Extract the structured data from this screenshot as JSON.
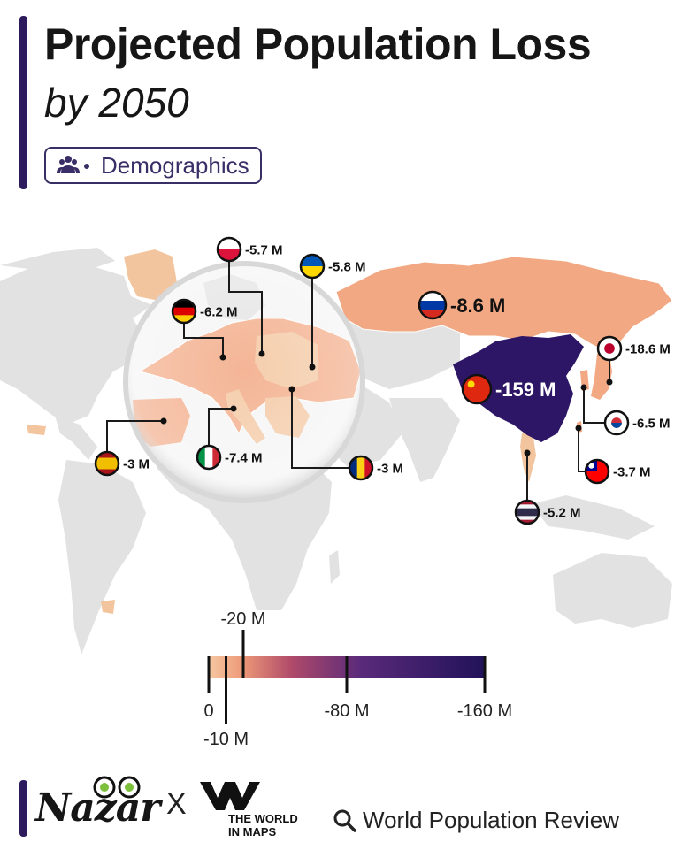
{
  "header": {
    "title": "Projected Population Loss",
    "subtitle": "by 2050",
    "tag": "Demographics",
    "tag_icon": "people-icon"
  },
  "countries": [
    {
      "code": "CN",
      "label": "-159 M",
      "value": -159
    },
    {
      "code": "JP",
      "label": "-18.6 M",
      "value": -18.6
    },
    {
      "code": "RU",
      "label": "-8.6 M",
      "value": -8.6
    },
    {
      "code": "IT",
      "label": "-7.4 M",
      "value": -7.4
    },
    {
      "code": "KR",
      "label": "-6.5 M",
      "value": -6.5
    },
    {
      "code": "DE",
      "label": "-6.2 M",
      "value": -6.2
    },
    {
      "code": "UA",
      "label": "-5.8 M",
      "value": -5.8
    },
    {
      "code": "PL",
      "label": "-5.7 M",
      "value": -5.7
    },
    {
      "code": "TH",
      "label": "-5.2 M",
      "value": -5.2
    },
    {
      "code": "TW",
      "label": "-3.7 M",
      "value": -3.7
    },
    {
      "code": "ES",
      "label": "-3 M",
      "value": -3
    },
    {
      "code": "RO",
      "label": "-3 M",
      "value": -3
    }
  ],
  "legend": {
    "ticks": [
      {
        "label": "0",
        "value": 0
      },
      {
        "label": "-10 M",
        "value": -10
      },
      {
        "label": "-20 M",
        "value": -20
      },
      {
        "label": "-80 M",
        "value": -80
      },
      {
        "label": "-160 M",
        "value": -160
      }
    ],
    "colors": [
      "#f6c8a2",
      "#ee9a78",
      "#b04a6a",
      "#5a2a7a",
      "#21125a"
    ]
  },
  "colors": {
    "land": "#e2e2e2",
    "small_loss": "#f2a883",
    "mid_loss": "#f3c59e",
    "china": "#2d1666",
    "accent": "#2d1b5e"
  },
  "footer": {
    "brand1": "Nazar",
    "separator": "X",
    "brand2_line1": "THE WORLD",
    "brand2_line2": "IN MAPS",
    "source": "World Population Review"
  }
}
